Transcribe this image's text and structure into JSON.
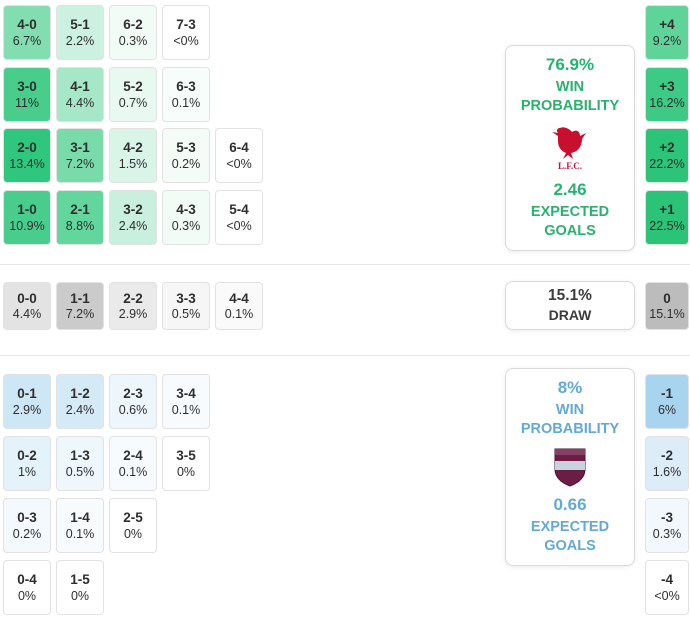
{
  "colors": {
    "home_accent": "#27b36d",
    "away_accent": "#64a9d6",
    "draw_accent": "#3d3d3d",
    "cell_text": "#2e2e2e",
    "cell_border": "#e2e2e2",
    "card_border": "#dadada",
    "divider": "#e7e7e7",
    "liverpool_red": "#c8102e",
    "burnley_claret": "#6c1d45",
    "burnley_blue": "#c7d3de"
  },
  "chart_data": {
    "type": "heatmap",
    "sections": {
      "home": {
        "card": {
          "pct": "76.9%",
          "label1": "WIN",
          "label2": "PROBABILITY",
          "crest_text": "L.F.C.",
          "xg": "2.46",
          "xg_label1": "EXPECTED",
          "xg_label2": "GOALS"
        },
        "rows": [
          [
            {
              "score": "4-0",
              "pct": "6.7%",
              "bg": "#82deb0"
            },
            {
              "score": "5-1",
              "pct": "2.2%",
              "bg": "#ccf1e0"
            },
            {
              "score": "6-2",
              "pct": "0.3%",
              "bg": "#f1fcf7"
            },
            {
              "score": "7-3",
              "pct": "<0%",
              "bg": "#ffffff"
            }
          ],
          [
            {
              "score": "3-0",
              "pct": "11%",
              "bg": "#48cd8b"
            },
            {
              "score": "4-1",
              "pct": "4.4%",
              "bg": "#a5e7c6"
            },
            {
              "score": "5-2",
              "pct": "0.7%",
              "bg": "#e8f9f1"
            },
            {
              "score": "6-3",
              "pct": "0.1%",
              "bg": "#f7fdfa"
            }
          ],
          [
            {
              "score": "2-0",
              "pct": "13.4%",
              "bg": "#2fc77d"
            },
            {
              "score": "3-1",
              "pct": "7.2%",
              "bg": "#79dba9"
            },
            {
              "score": "4-2",
              "pct": "1.5%",
              "bg": "#d9f5e8"
            },
            {
              "score": "5-3",
              "pct": "0.2%",
              "bg": "#f4fcf8"
            },
            {
              "score": "6-4",
              "pct": "<0%",
              "bg": "#ffffff"
            }
          ],
          [
            {
              "score": "1-0",
              "pct": "10.9%",
              "bg": "#49cd8c"
            },
            {
              "score": "2-1",
              "pct": "8.8%",
              "bg": "#63d69d"
            },
            {
              "score": "3-2",
              "pct": "2.4%",
              "bg": "#c9f0de"
            },
            {
              "score": "4-3",
              "pct": "0.3%",
              "bg": "#f1fcf7"
            },
            {
              "score": "5-4",
              "pct": "<0%",
              "bg": "#ffffff"
            }
          ]
        ],
        "margins": [
          {
            "margin": "+4",
            "pct": "9.2%",
            "bg": "#5fd499"
          },
          {
            "margin": "+3",
            "pct": "16.2%",
            "bg": "#3cca84"
          },
          {
            "margin": "+2",
            "pct": "22.2%",
            "bg": "#2cc478"
          },
          {
            "margin": "+1",
            "pct": "22.5%",
            "bg": "#2bc377"
          }
        ]
      },
      "draw": {
        "card": {
          "pct": "15.1%",
          "label": "DRAW"
        },
        "rows": [
          [
            {
              "score": "0-0",
              "pct": "4.4%",
              "bg": "#e3e3e3"
            },
            {
              "score": "1-1",
              "pct": "7.2%",
              "bg": "#cbcbcb"
            },
            {
              "score": "2-2",
              "pct": "2.9%",
              "bg": "#eaeaea"
            },
            {
              "score": "3-3",
              "pct": "0.5%",
              "bg": "#f6f6f6"
            },
            {
              "score": "4-4",
              "pct": "0.1%",
              "bg": "#fafafa"
            }
          ]
        ],
        "margins": [
          {
            "margin": "0",
            "pct": "15.1%",
            "bg": "#bcbcbc"
          }
        ]
      },
      "away": {
        "card": {
          "pct": "8%",
          "label1": "WIN",
          "label2": "PROBABILITY",
          "xg": "0.66",
          "xg_label1": "EXPECTED",
          "xg_label2": "GOALS"
        },
        "rows": [
          [
            {
              "score": "0-1",
              "pct": "2.9%",
              "bg": "#cde7f6"
            },
            {
              "score": "1-2",
              "pct": "2.4%",
              "bg": "#d4eaf7"
            },
            {
              "score": "2-3",
              "pct": "0.6%",
              "bg": "#edf6fc"
            },
            {
              "score": "3-4",
              "pct": "0.1%",
              "bg": "#f8fbfe"
            }
          ],
          [
            {
              "score": "0-2",
              "pct": "1%",
              "bg": "#e4f2fa"
            },
            {
              "score": "1-3",
              "pct": "0.5%",
              "bg": "#eef7fc"
            },
            {
              "score": "2-4",
              "pct": "0.1%",
              "bg": "#f8fbfe"
            },
            {
              "score": "3-5",
              "pct": "0%",
              "bg": "#ffffff"
            }
          ],
          [
            {
              "score": "0-3",
              "pct": "0.2%",
              "bg": "#f4f9fd"
            },
            {
              "score": "1-4",
              "pct": "0.1%",
              "bg": "#f8fbfe"
            },
            {
              "score": "2-5",
              "pct": "0%",
              "bg": "#ffffff"
            }
          ],
          [
            {
              "score": "0-4",
              "pct": "0%",
              "bg": "#ffffff"
            },
            {
              "score": "1-5",
              "pct": "0%",
              "bg": "#ffffff"
            }
          ]
        ],
        "margins": [
          {
            "margin": "-1",
            "pct": "6%",
            "bg": "#a8d4ef"
          },
          {
            "margin": "-2",
            "pct": "1.6%",
            "bg": "#dcedf9"
          },
          {
            "margin": "-3",
            "pct": "0.3%",
            "bg": "#f2f8fd"
          },
          {
            "margin": "-4",
            "pct": "<0%",
            "bg": "#ffffff"
          }
        ]
      }
    }
  }
}
